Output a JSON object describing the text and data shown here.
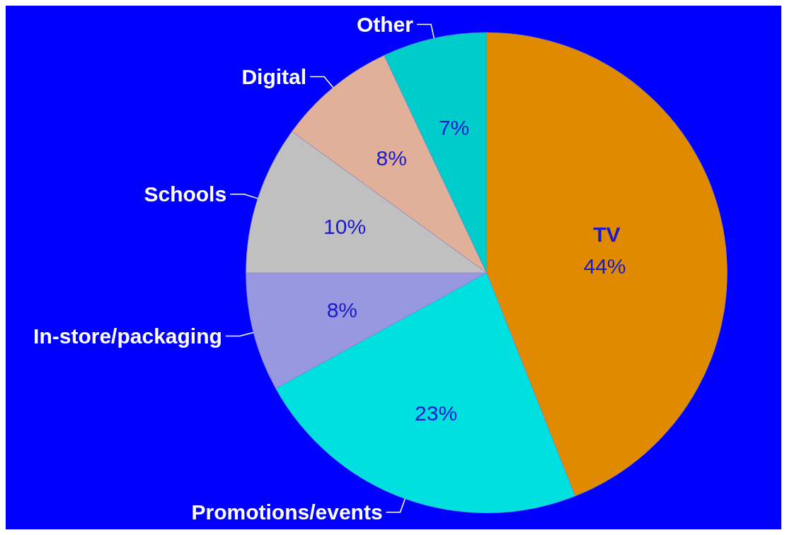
{
  "chart_data": {
    "type": "pie",
    "categories": [
      "TV",
      "Promotions/events",
      "In-store/packaging",
      "Schools",
      "Digital",
      "Other"
    ],
    "values": [
      44,
      23,
      8,
      10,
      8,
      7
    ],
    "value_labels": [
      "44%",
      "23%",
      "8%",
      "10%",
      "8%",
      "7%"
    ],
    "colors": [
      "#e08a00",
      "#00e0e0",
      "#9898e0",
      "#c0c0c0",
      "#e0b098",
      "#00cccc"
    ]
  }
}
